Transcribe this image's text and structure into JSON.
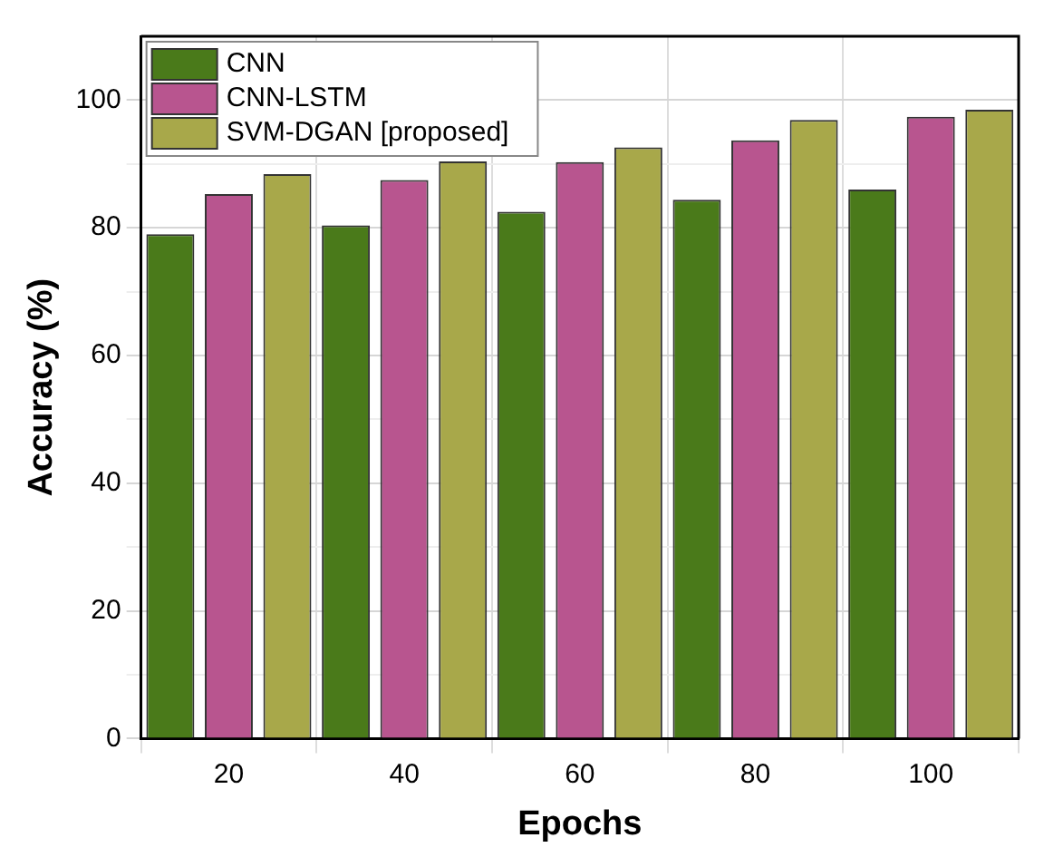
{
  "chart_data": {
    "type": "bar",
    "xlabel": "Epochs",
    "ylabel": "Accuracy (%)",
    "categories": [
      "20",
      "40",
      "60",
      "80",
      "100"
    ],
    "series": [
      {
        "name": "CNN",
        "color": "#4a7a1a",
        "values": [
          79.0,
          80.4,
          82.5,
          84.4,
          86.0
        ]
      },
      {
        "name": "CNN-LSTM",
        "color": "#b8558f",
        "values": [
          85.3,
          87.5,
          90.3,
          93.7,
          97.4
        ]
      },
      {
        "name": "SVM-DGAN [proposed]",
        "color": "#a8a84a",
        "values": [
          88.4,
          90.4,
          92.6,
          96.9,
          98.5
        ]
      }
    ],
    "ylim": [
      0,
      110
    ],
    "yticks": [
      0,
      {
        "value": 10,
        "label": null
      },
      20,
      {
        "value": 30,
        "label": null
      },
      40,
      {
        "value": 50,
        "label": null
      },
      60,
      {
        "value": 70,
        "label": null
      },
      80,
      {
        "value": 90,
        "label": null
      },
      100
    ],
    "grid": true,
    "legend": "top left"
  }
}
